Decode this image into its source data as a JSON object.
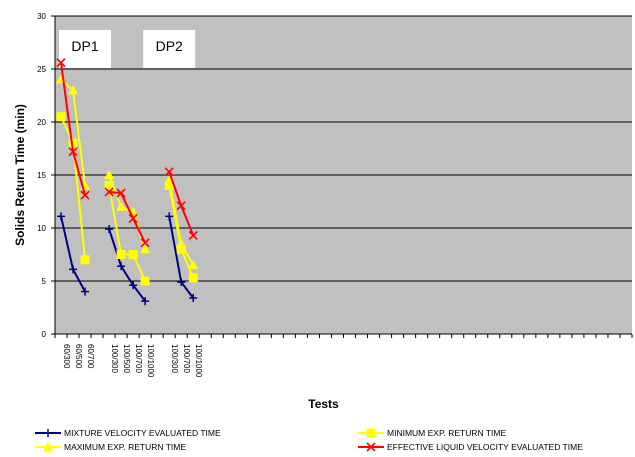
{
  "chart_data": {
    "type": "line",
    "xlabel": "Tests",
    "ylabel": "Solids Return Time (min)",
    "ylim": [
      0,
      30
    ],
    "yticks": [
      0,
      5,
      10,
      15,
      20,
      25,
      30
    ],
    "grid": "horizontal",
    "categories": [
      "60/300",
      "60/500",
      "60/700",
      "",
      "100/300",
      "100/500",
      "100/700",
      "100/1000",
      "",
      "100/300",
      "100/700",
      "100/1000",
      "",
      "",
      "",
      "",
      "",
      "",
      "",
      "",
      "",
      "",
      "",
      "",
      "",
      "",
      "",
      "",
      "",
      "",
      "",
      "",
      "",
      "",
      "",
      "",
      "",
      "",
      "",
      "",
      "",
      "",
      "",
      "",
      "",
      "",
      "",
      ""
    ],
    "annotations": [
      {
        "text": "DP1",
        "at_category": 2
      },
      {
        "text": "DP2",
        "at_category": 9
      }
    ],
    "series": [
      {
        "name": "MIXTURE VELOCITY EVALUATED TIME",
        "color": "#000080",
        "marker": "plus",
        "segments": [
          [
            [
              0,
              11.1
            ],
            [
              1,
              6.1
            ],
            [
              2,
              4.0
            ]
          ],
          [
            [
              4,
              9.9
            ],
            [
              5,
              6.4
            ],
            [
              6,
              4.6
            ],
            [
              7,
              3.1
            ]
          ],
          [
            [
              9,
              11.1
            ],
            [
              10,
              4.9
            ],
            [
              11,
              3.4
            ]
          ]
        ]
      },
      {
        "name": "MINIMUM EXP. RETURN TIME",
        "color": "#ffff00",
        "marker": "square",
        "segments": [
          [
            [
              0,
              20.5
            ],
            [
              1,
              18.0
            ],
            [
              2,
              7.0
            ]
          ],
          [
            [
              4,
              14.0
            ],
            [
              5,
              7.5
            ],
            [
              6,
              7.5
            ],
            [
              7,
              5.0
            ]
          ],
          [
            [
              9,
              14.0
            ],
            [
              10,
              8.0
            ],
            [
              11,
              5.3
            ]
          ]
        ]
      },
      {
        "name": "MAXIMUM EXP. RETURN TIME",
        "color": "#ffff00",
        "marker": "triangle",
        "segments": [
          [
            [
              0,
              24.0
            ],
            [
              1,
              23.0
            ],
            [
              2,
              14.0
            ]
          ],
          [
            [
              4,
              15.0
            ],
            [
              5,
              12.0
            ],
            [
              6,
              11.5
            ],
            [
              7,
              8.0
            ]
          ],
          [
            [
              9,
              14.5
            ],
            [
              10,
              8.5
            ],
            [
              11,
              6.5
            ]
          ]
        ]
      },
      {
        "name": "EFFECTIVE LIQUID VELOCITY EVALUATED TIME",
        "color": "#ff0000",
        "marker": "x",
        "segments": [
          [
            [
              0,
              25.6
            ],
            [
              1,
              17.2
            ],
            [
              2,
              13.1
            ]
          ],
          [
            [
              4,
              13.4
            ],
            [
              5,
              13.3
            ],
            [
              6,
              10.9
            ],
            [
              7,
              8.6
            ]
          ],
          [
            [
              9,
              15.3
            ],
            [
              10,
              12.1
            ],
            [
              11,
              9.3
            ]
          ]
        ]
      }
    ],
    "legend": {
      "placement": "bottom",
      "order": [
        0,
        1,
        2,
        3
      ]
    }
  }
}
